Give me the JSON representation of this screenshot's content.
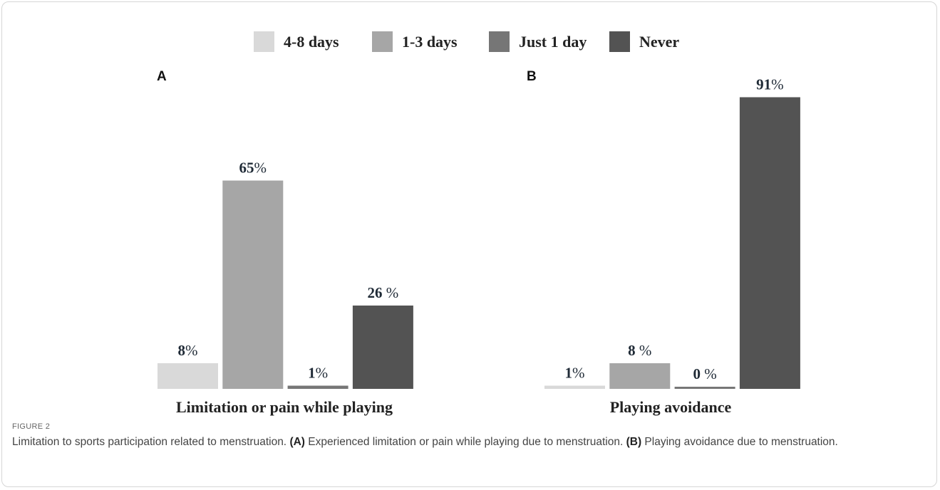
{
  "legend": [
    {
      "label": "4-8 days",
      "color": "#d9d9d9"
    },
    {
      "label": "1-3 days",
      "color": "#a6a6a6"
    },
    {
      "label": "Just 1 day",
      "color": "#767676"
    },
    {
      "label": "Never",
      "color": "#535353"
    }
  ],
  "chart_data": [
    {
      "type": "bar",
      "panel": "A",
      "title": "Limitation or pain while playing",
      "categories": [
        "4-8 days",
        "1-3 days",
        "Just 1 day",
        "Never"
      ],
      "values": [
        8,
        65,
        1,
        26
      ],
      "labels": [
        {
          "num": "8",
          "unit": "%"
        },
        {
          "num": "65",
          "unit": "%"
        },
        {
          "num": "1",
          "unit": "%"
        },
        {
          "num": "26",
          "unit": " %"
        }
      ],
      "colors": [
        "#d9d9d9",
        "#a6a6a6",
        "#767676",
        "#535353"
      ],
      "ylim": [
        0,
        100
      ],
      "grid": false
    },
    {
      "type": "bar",
      "panel": "B",
      "title": "Playing avoidance",
      "categories": [
        "4-8 days",
        "1-3 days",
        "Just 1 day",
        "Never"
      ],
      "values": [
        1,
        8,
        0,
        91
      ],
      "labels": [
        {
          "num": "1",
          "unit": "%"
        },
        {
          "num": "8",
          "unit": " %"
        },
        {
          "num": "0",
          "unit": " %"
        },
        {
          "num": "91",
          "unit": "%"
        }
      ],
      "colors": [
        "#d9d9d9",
        "#a6a6a6",
        "#767676",
        "#535353"
      ],
      "ylim": [
        0,
        100
      ],
      "grid": false
    }
  ],
  "caption": {
    "label": "FIGURE 2",
    "text_intro": "Limitation to sports participation related to menstruation. ",
    "marker_a": "(A)",
    "text_a": " Experienced limitation or pain while playing due to menstruation. ",
    "marker_b": "(B)",
    "text_b": " Playing avoidance due to menstruation."
  }
}
